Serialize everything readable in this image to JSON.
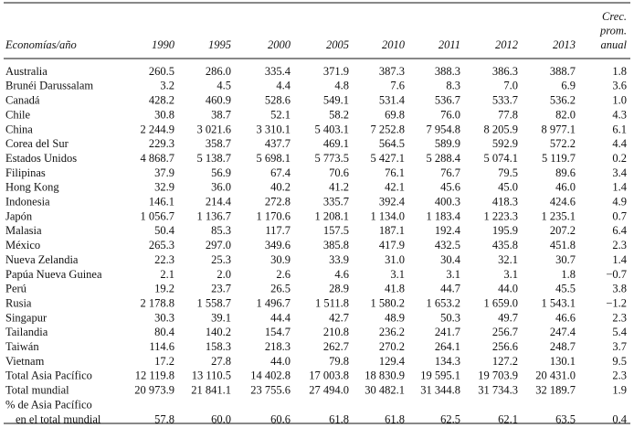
{
  "table": {
    "header": {
      "first": "Economías/año",
      "years": [
        "1990",
        "1995",
        "2000",
        "2005",
        "2010",
        "2011",
        "2012",
        "2013"
      ],
      "growth": [
        "Crec.",
        "prom.",
        "anual"
      ]
    },
    "rows": [
      {
        "label": [
          "Australia"
        ],
        "cells": [
          "260.5",
          "286.0",
          "335.4",
          "371.9",
          "387.3",
          "388.3",
          "386.3",
          "388.7",
          "1.8"
        ]
      },
      {
        "label": [
          "Brunéi Darussalam"
        ],
        "cells": [
          "3.2",
          "4.5",
          "4.4",
          "4.8",
          "7.6",
          "8.3",
          "7.0",
          "6.9",
          "3.6"
        ]
      },
      {
        "label": [
          "Canadá"
        ],
        "cells": [
          "428.2",
          "460.9",
          "528.6",
          "549.1",
          "531.4",
          "536.7",
          "533.7",
          "536.2",
          "1.0"
        ]
      },
      {
        "label": [
          "Chile"
        ],
        "cells": [
          "30.8",
          "38.7",
          "52.1",
          "58.2",
          "69.8",
          "76.0",
          "77.8",
          "82.0",
          "4.3"
        ]
      },
      {
        "label": [
          "China"
        ],
        "cells": [
          "2 244.9",
          "3 021.6",
          "3 310.1",
          "5 403.1",
          "7 252.8",
          "7 954.8",
          "8 205.9",
          "8 977.1",
          "6.1"
        ]
      },
      {
        "label": [
          "Corea del Sur"
        ],
        "cells": [
          "229.3",
          "358.7",
          "437.7",
          "469.1",
          "564.5",
          "589.9",
          "592.9",
          "572.2",
          "4.4"
        ]
      },
      {
        "label": [
          "Estados Unidos"
        ],
        "cells": [
          "4 868.7",
          "5 138.7",
          "5 698.1",
          "5 773.5",
          "5 427.1",
          "5 288.4",
          "5 074.1",
          "5 119.7",
          "0.2"
        ]
      },
      {
        "label": [
          "Filipinas"
        ],
        "cells": [
          "37.9",
          "56.9",
          "67.4",
          "70.6",
          "76.1",
          "76.7",
          "79.5",
          "89.6",
          "3.4"
        ]
      },
      {
        "label": [
          "Hong Kong"
        ],
        "cells": [
          "32.9",
          "36.0",
          "40.2",
          "41.2",
          "42.1",
          "45.6",
          "45.0",
          "46.0",
          "1.4"
        ]
      },
      {
        "label": [
          "Indonesia"
        ],
        "cells": [
          "146.1",
          "214.4",
          "272.8",
          "335.7",
          "392.4",
          "400.3",
          "418.3",
          "424.6",
          "4.9"
        ]
      },
      {
        "label": [
          "Japón"
        ],
        "cells": [
          "1 056.7",
          "1 136.7",
          "1 170.6",
          "1 208.1",
          "1 134.0",
          "1 183.4",
          "1 223.3",
          "1 235.1",
          "0.7"
        ]
      },
      {
        "label": [
          "Malasia"
        ],
        "cells": [
          "50.4",
          "85.3",
          "117.7",
          "157.5",
          "187.1",
          "192.4",
          "195.9",
          "207.2",
          "6.4"
        ]
      },
      {
        "label": [
          "México"
        ],
        "cells": [
          "265.3",
          "297.0",
          "349.6",
          "385.8",
          "417.9",
          "432.5",
          "435.8",
          "451.8",
          "2.3"
        ]
      },
      {
        "label": [
          "Nueva Zelandia"
        ],
        "cells": [
          "22.3",
          "25.3",
          "30.9",
          "33.9",
          "31.0",
          "30.4",
          "32.1",
          "30.7",
          "1.4"
        ]
      },
      {
        "label": [
          "Papúa Nueva Guinea"
        ],
        "cells": [
          "2.1",
          "2.0",
          "2.6",
          "4.6",
          "3.1",
          "3.1",
          "3.1",
          "1.8",
          "−0.7"
        ]
      },
      {
        "label": [
          "Perú"
        ],
        "cells": [
          "19.2",
          "23.7",
          "26.5",
          "28.9",
          "41.8",
          "44.7",
          "44.0",
          "45.5",
          "3.8"
        ]
      },
      {
        "label": [
          "Rusia"
        ],
        "cells": [
          "2 178.8",
          "1 558.7",
          "1 496.7",
          "1 511.8",
          "1 580.2",
          "1 653.2",
          "1 659.0",
          "1 543.1",
          "−1.2"
        ]
      },
      {
        "label": [
          "Singapur"
        ],
        "cells": [
          "30.3",
          "39.1",
          "44.4",
          "42.7",
          "48.9",
          "50.3",
          "49.7",
          "46.6",
          "2.3"
        ]
      },
      {
        "label": [
          "Tailandia"
        ],
        "cells": [
          "80.4",
          "140.2",
          "154.7",
          "210.8",
          "236.2",
          "241.7",
          "256.7",
          "247.4",
          "5.4"
        ]
      },
      {
        "label": [
          "Taiwán"
        ],
        "cells": [
          "114.6",
          "158.3",
          "218.3",
          "262.7",
          "270.2",
          "264.1",
          "256.6",
          "248.7",
          "3.7"
        ]
      },
      {
        "label": [
          "Vietnam"
        ],
        "cells": [
          "17.2",
          "27.8",
          "44.0",
          "79.8",
          "129.4",
          "134.3",
          "127.2",
          "130.1",
          "9.5"
        ]
      },
      {
        "label": [
          "Total Asia Pacífico"
        ],
        "cells": [
          "12 119.8",
          "13 110.5",
          "14 402.8",
          "17 003.8",
          "18 830.9",
          "19 595.1",
          "19 703.9",
          "20 431.0",
          "2.3"
        ]
      },
      {
        "label": [
          "Total mundial"
        ],
        "cells": [
          "20 973.9",
          "21 841.1",
          "23 755.6",
          "27 494.0",
          "30 482.1",
          "31 344.8",
          "31 734.3",
          "32 189.7",
          "1.9"
        ]
      },
      {
        "label": [
          "% de Asia Pacífico",
          "en el total mundial"
        ],
        "cells": [
          "57.8",
          "60.0",
          "60.6",
          "61.8",
          "61.8",
          "62.5",
          "62.1",
          "63.5",
          "0.4"
        ]
      }
    ]
  }
}
